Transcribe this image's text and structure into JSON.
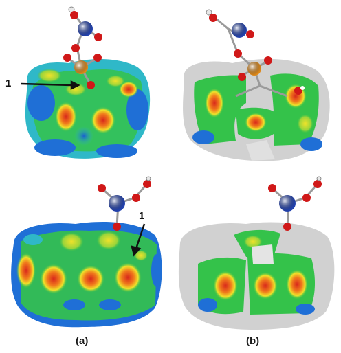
{
  "figure": {
    "panel_labels": [
      "(a)",
      "(b)"
    ],
    "callouts": [
      {
        "panel": "a-top",
        "text": "1"
      },
      {
        "panel": "a-bottom",
        "text": "1"
      }
    ]
  },
  "colors": {
    "surface_blue": "#1f6fd6",
    "surface_cyan": "#2fb8c8",
    "surface_green": "#34c24a",
    "surface_yellow": "#f0e22a",
    "surface_orange": "#f07a1c",
    "surface_red": "#d8281c",
    "transparent_surface": "#c9c9c9",
    "atom_nitrogen": "#2343b0",
    "atom_oxygen": "#d01818",
    "atom_phosphorus": "#e08a1a",
    "atom_hydrogen": "#e8e8e8",
    "bond": "#9a9a9a"
  }
}
